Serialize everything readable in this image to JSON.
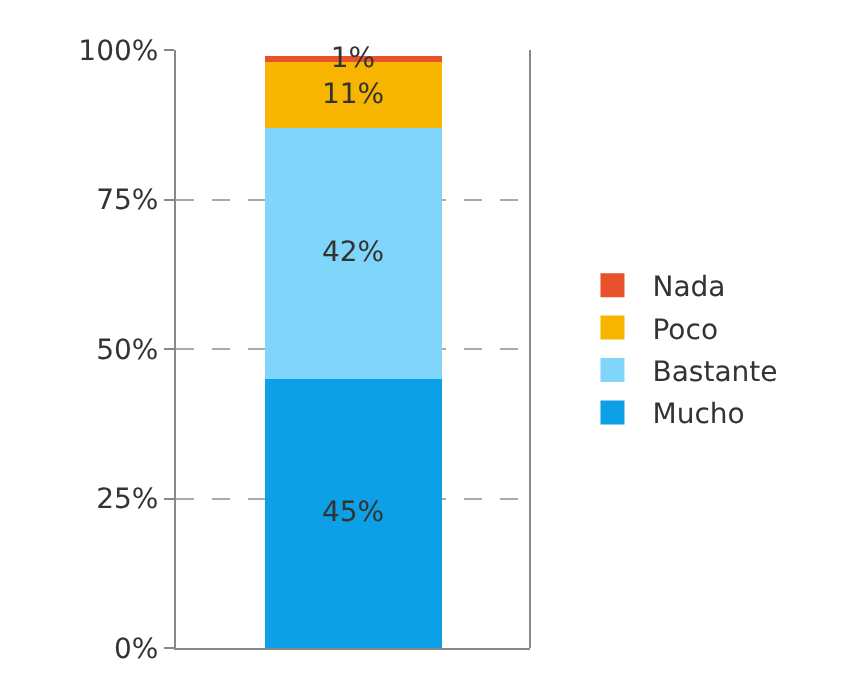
{
  "chart_data": {
    "type": "bar",
    "stacked": true,
    "categories": [
      null
    ],
    "series": [
      {
        "name": "Mucho",
        "color": "#0ea0e6",
        "values": [
          45
        ],
        "value_labels": [
          "45%"
        ]
      },
      {
        "name": "Bastante",
        "color": "#80d6fa",
        "values": [
          42
        ],
        "value_labels": [
          "42%"
        ]
      },
      {
        "name": "Poco",
        "color": "#f7b500",
        "values": [
          11
        ],
        "value_labels": [
          "11%"
        ]
      },
      {
        "name": "Nada",
        "color": "#e8512b",
        "values": [
          1
        ],
        "value_labels": [
          "1%"
        ]
      }
    ],
    "ylim": [
      0,
      100
    ],
    "yticks": [
      {
        "value": 0,
        "label": "0%"
      },
      {
        "value": 25,
        "label": "25%"
      },
      {
        "value": 50,
        "label": "50%"
      },
      {
        "value": 75,
        "label": "75%"
      },
      {
        "value": 100,
        "label": "100%"
      }
    ],
    "grid": "y",
    "legend": "right"
  }
}
